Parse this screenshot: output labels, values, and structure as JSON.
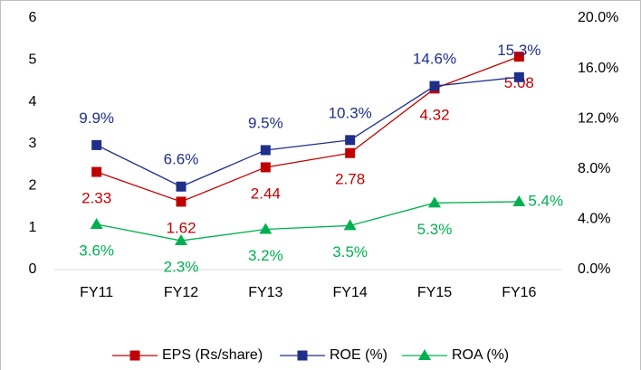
{
  "chart_data": {
    "type": "line",
    "categories": [
      "FY11",
      "FY12",
      "FY13",
      "FY14",
      "FY15",
      "FY16"
    ],
    "ylim": [
      0,
      6
    ],
    "yticks": [
      0,
      1,
      2,
      3,
      4,
      5,
      6
    ],
    "y2lim": [
      0,
      20
    ],
    "y2ticks": [
      {
        "value": 0,
        "label": "0.0%"
      },
      {
        "value": 4,
        "label": "4.0%"
      },
      {
        "value": 8,
        "label": "8.0%"
      },
      {
        "value": 12,
        "label": "12.0%"
      },
      {
        "value": 16,
        "label": "16.0%"
      },
      {
        "value": 20,
        "label": "20.0%"
      }
    ],
    "grid": false,
    "legend": "bottom",
    "series": [
      {
        "name": "EPS (Rs/share)",
        "color": "#c00000",
        "marker": "square",
        "values": [
          2.33,
          1.62,
          2.44,
          2.78,
          4.32,
          5.08
        ]
      },
      {
        "name": "ROE (%)",
        "color": "#1f2f8a",
        "marker": "square",
        "axis": "y2",
        "values": [
          9.9,
          6.6,
          9.5,
          10.3,
          14.6,
          15.3
        ],
        "value_labels": [
          "9.9%",
          "6.6%",
          "9.5%",
          "10.3%",
          "14.6%",
          "15.3%"
        ]
      },
      {
        "name": "ROA (%)",
        "color": "#00b050",
        "marker": "triangle",
        "axis": "y2",
        "values": [
          3.6,
          2.3,
          3.2,
          3.5,
          5.3,
          5.4
        ],
        "value_labels": [
          "3.6%",
          "2.3%",
          "3.2%",
          "3.5%",
          "5.3%",
          "5.4%"
        ]
      }
    ]
  }
}
